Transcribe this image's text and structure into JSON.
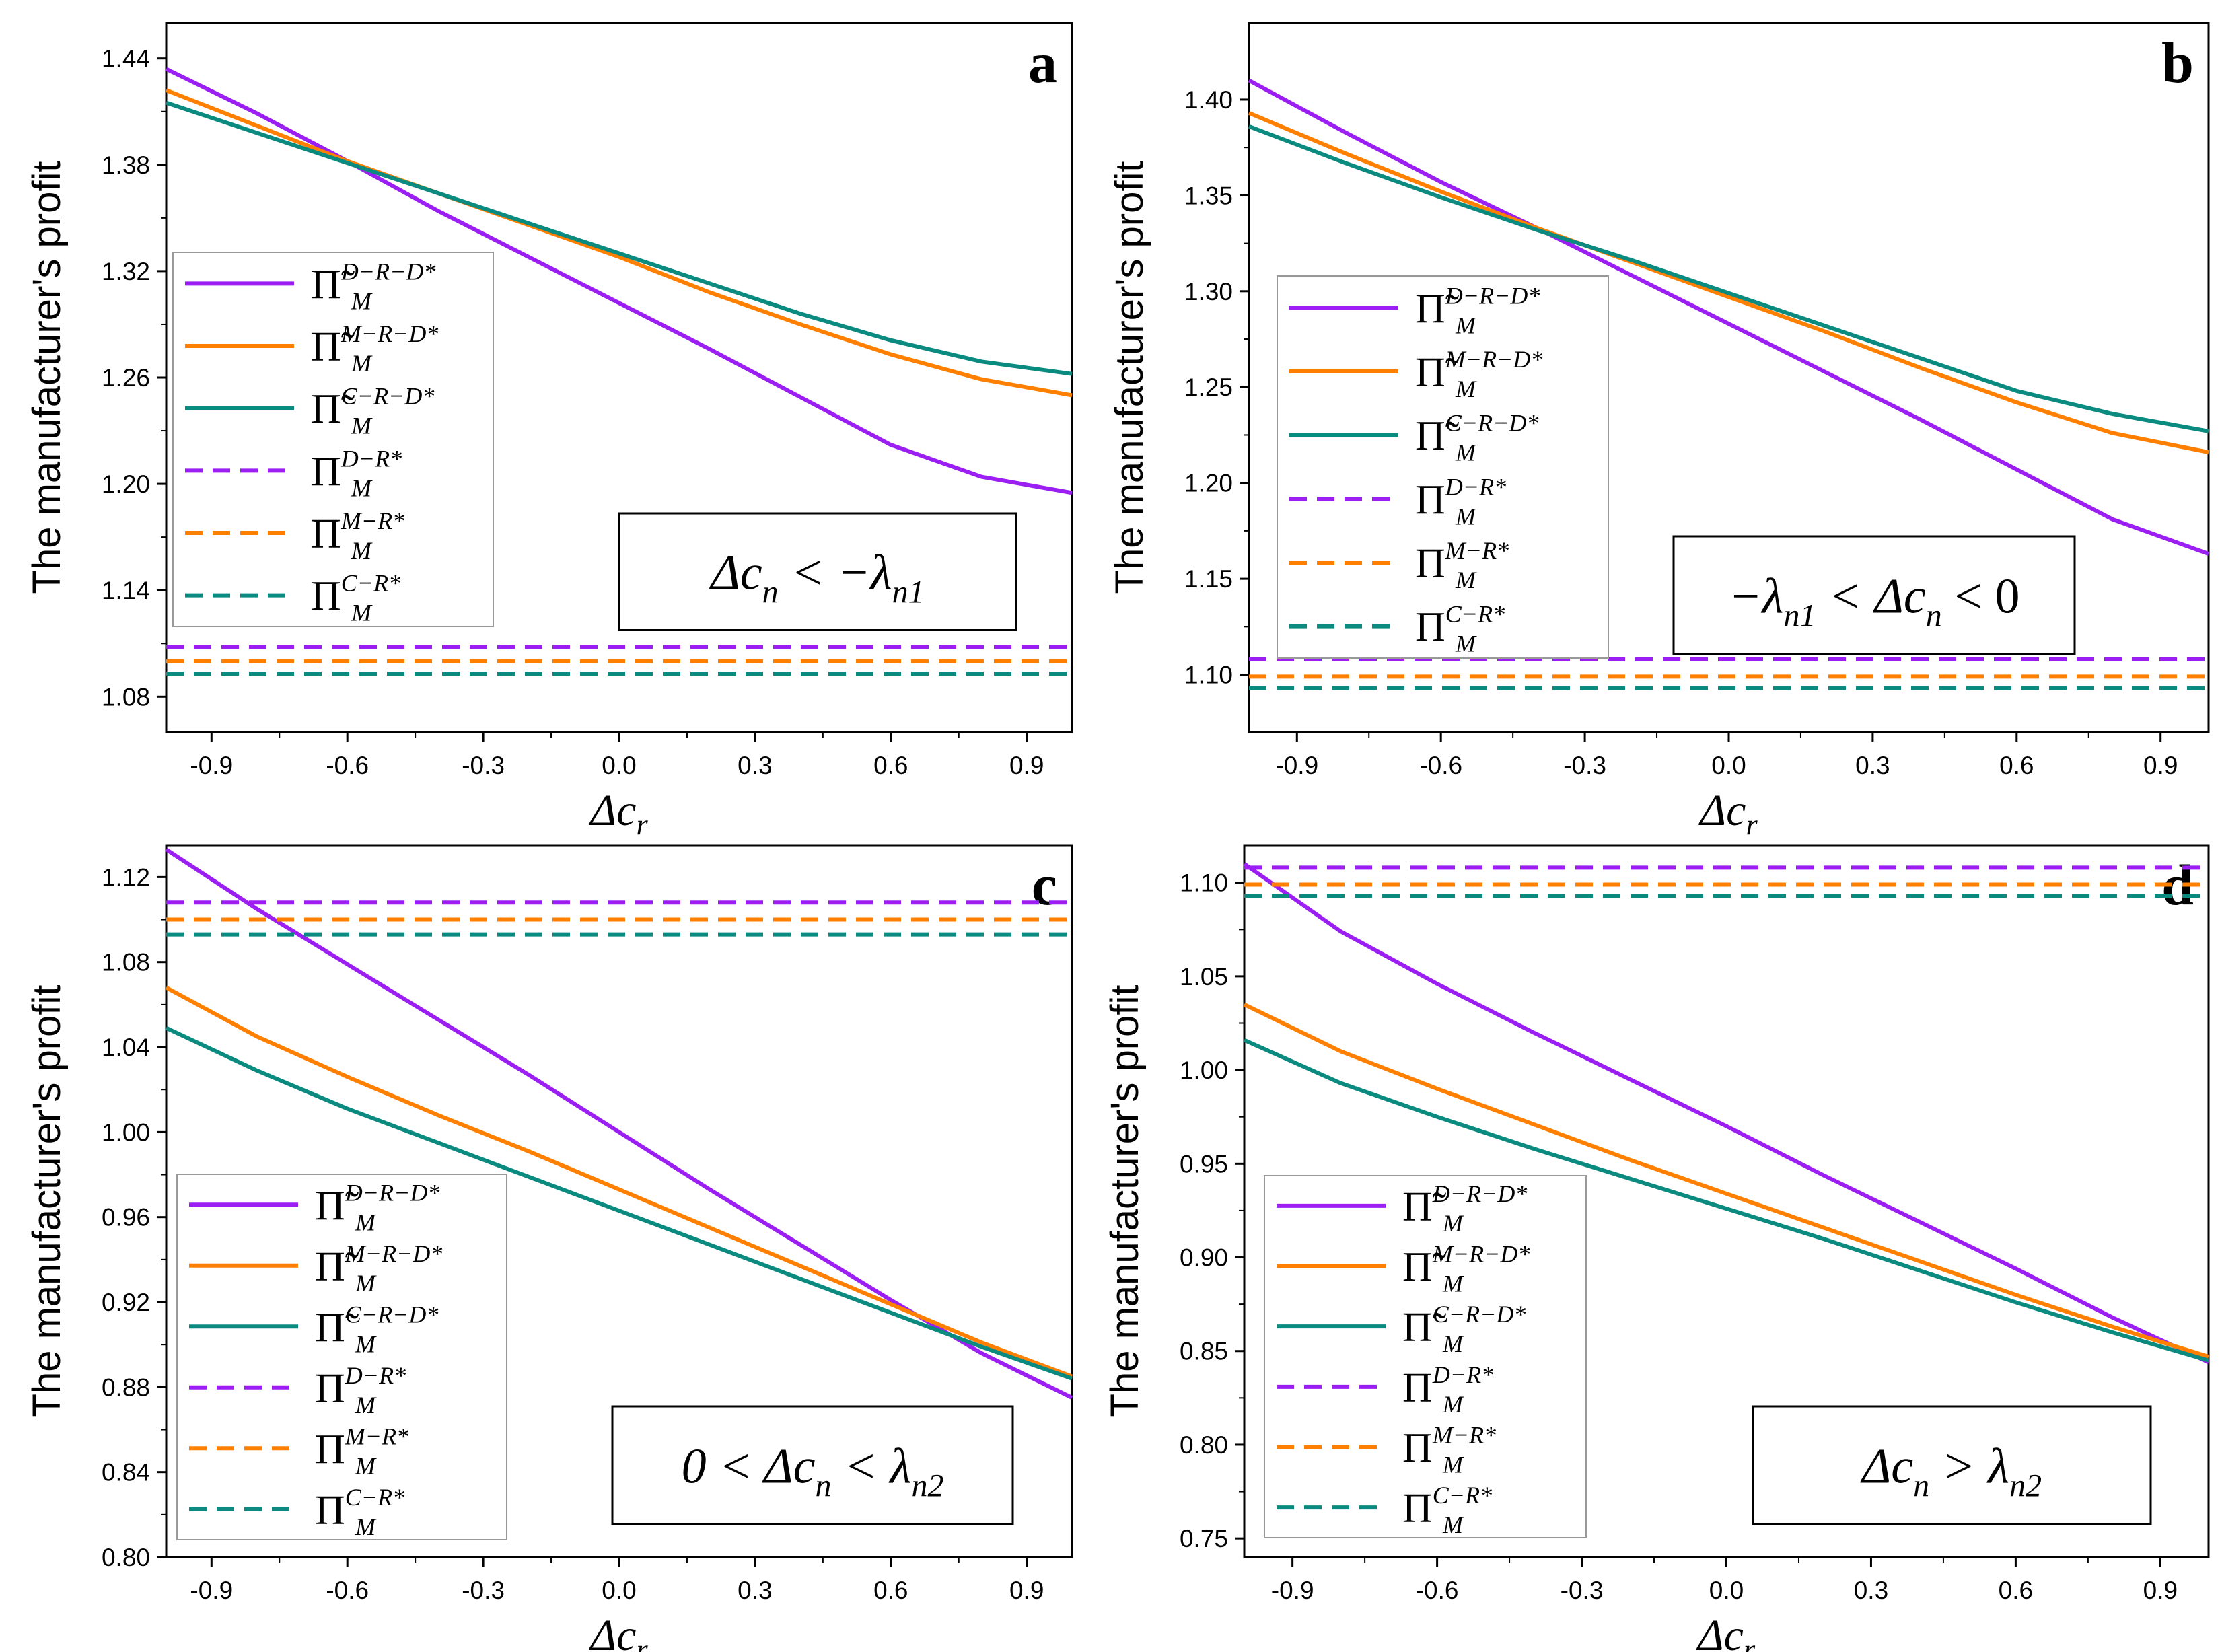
{
  "colors": {
    "purple": "#9b1ff2",
    "orange": "#ff7f00",
    "teal": "#0b8a80"
  },
  "legend_entries": [
    {
      "key": "DRD",
      "base": "Π̃",
      "sup": "D−R−D*",
      "sub": "M",
      "color": "#9b1ff2",
      "dash": false
    },
    {
      "key": "MRD",
      "base": "Π̃",
      "sup": "M−R−D*",
      "sub": "M",
      "color": "#ff7f00",
      "dash": false
    },
    {
      "key": "CRD",
      "base": "Π̃",
      "sup": "C−R−D*",
      "sub": "M",
      "color": "#0b8a80",
      "dash": false
    },
    {
      "key": "DR",
      "base": "Π",
      "sup": "D−R*",
      "sub": "M",
      "color": "#9b1ff2",
      "dash": true
    },
    {
      "key": "MR",
      "base": "Π",
      "sup": "M−R*",
      "sub": "M",
      "color": "#ff7f00",
      "dash": true
    },
    {
      "key": "CR",
      "base": "Π",
      "sup": "C−R*",
      "sub": "M",
      "color": "#0b8a80",
      "dash": true
    }
  ],
  "chart_data": [
    {
      "type": "line",
      "panel_label": "a",
      "ylabel": "The manufacturer's profit",
      "xlabel": {
        "main": "Δc",
        "sub": "r"
      },
      "xlim": [
        -1.0,
        1.0
      ],
      "ylim": [
        1.06,
        1.46
      ],
      "xticks": [
        -0.9,
        -0.6,
        -0.3,
        0.0,
        0.3,
        0.6,
        0.9
      ],
      "xtick_labels": [
        "-0.9",
        "-0.6",
        "-0.3",
        "0.0",
        "0.3",
        "0.6",
        "0.9"
      ],
      "yticks": [
        1.08,
        1.14,
        1.2,
        1.26,
        1.32,
        1.38,
        1.44
      ],
      "ytick_labels": [
        "1.08",
        "1.14",
        "1.20",
        "1.26",
        "1.32",
        "1.38",
        "1.44"
      ],
      "condition": [
        "Δc",
        "n",
        " < −λ",
        "n1",
        ""
      ],
      "series": [
        {
          "key": "DRD",
          "x": [
            -1.0,
            -0.8,
            -0.6,
            -0.4,
            -0.2,
            0.0,
            0.2,
            0.4,
            0.6,
            0.8,
            1.0
          ],
          "values": [
            1.434,
            1.409,
            1.382,
            1.354,
            1.328,
            1.302,
            1.276,
            1.249,
            1.222,
            1.204,
            1.195
          ]
        },
        {
          "key": "MRD",
          "x": [
            -1.0,
            -0.8,
            -0.6,
            -0.4,
            -0.2,
            0.0,
            0.2,
            0.4,
            0.6,
            0.8,
            1.0
          ],
          "values": [
            1.422,
            1.402,
            1.382,
            1.364,
            1.346,
            1.328,
            1.308,
            1.29,
            1.273,
            1.259,
            1.25
          ]
        },
        {
          "key": "CRD",
          "x": [
            -1.0,
            -0.8,
            -0.6,
            -0.4,
            -0.2,
            0.0,
            0.2,
            0.4,
            0.6,
            0.8,
            1.0
          ],
          "values": [
            1.415,
            1.398,
            1.381,
            1.364,
            1.347,
            1.33,
            1.313,
            1.296,
            1.281,
            1.269,
            1.262
          ]
        },
        {
          "key": "DR",
          "x": [
            -1.0,
            1.0
          ],
          "values": [
            1.108,
            1.108
          ]
        },
        {
          "key": "MR",
          "x": [
            -1.0,
            1.0
          ],
          "values": [
            1.1,
            1.1
          ]
        },
        {
          "key": "CR",
          "x": [
            -1.0,
            1.0
          ],
          "values": [
            1.093,
            1.093
          ]
        }
      ]
    },
    {
      "type": "line",
      "panel_label": "b",
      "ylabel": "The manufacturer's profit",
      "xlabel": {
        "main": "Δc",
        "sub": "r"
      },
      "xlim": [
        -1.0,
        1.0
      ],
      "ylim": [
        1.07,
        1.44
      ],
      "xticks": [
        -0.9,
        -0.6,
        -0.3,
        0.0,
        0.3,
        0.6,
        0.9
      ],
      "xtick_labels": [
        "-0.9",
        "-0.6",
        "-0.3",
        "0.0",
        "0.3",
        "0.6",
        "0.9"
      ],
      "yticks": [
        1.1,
        1.15,
        1.2,
        1.25,
        1.3,
        1.35,
        1.4
      ],
      "ytick_labels": [
        "1.10",
        "1.15",
        "1.20",
        "1.25",
        "1.30",
        "1.35",
        "1.40"
      ],
      "condition": [
        "−λ",
        "n1",
        " < Δc",
        "n",
        " < 0"
      ],
      "series": [
        {
          "key": "DRD",
          "x": [
            -1.0,
            -0.8,
            -0.6,
            -0.4,
            -0.2,
            0.0,
            0.2,
            0.4,
            0.6,
            0.8,
            1.0
          ],
          "values": [
            1.41,
            1.383,
            1.357,
            1.333,
            1.308,
            1.283,
            1.258,
            1.233,
            1.207,
            1.181,
            1.163
          ]
        },
        {
          "key": "MRD",
          "x": [
            -1.0,
            -0.8,
            -0.6,
            -0.4,
            -0.2,
            0.0,
            0.2,
            0.4,
            0.6,
            0.8,
            1.0
          ],
          "values": [
            1.393,
            1.372,
            1.352,
            1.333,
            1.315,
            1.297,
            1.279,
            1.26,
            1.242,
            1.226,
            1.216
          ]
        },
        {
          "key": "CRD",
          "x": [
            -1.0,
            -0.8,
            -0.6,
            -0.4,
            -0.2,
            0.0,
            0.2,
            0.4,
            0.6,
            0.8,
            1.0
          ],
          "values": [
            1.386,
            1.367,
            1.349,
            1.332,
            1.316,
            1.299,
            1.282,
            1.265,
            1.248,
            1.236,
            1.227
          ]
        },
        {
          "key": "DR",
          "x": [
            -1.0,
            1.0
          ],
          "values": [
            1.108,
            1.108
          ]
        },
        {
          "key": "MR",
          "x": [
            -1.0,
            1.0
          ],
          "values": [
            1.099,
            1.099
          ]
        },
        {
          "key": "CR",
          "x": [
            -1.0,
            1.0
          ],
          "values": [
            1.093,
            1.093
          ]
        }
      ]
    },
    {
      "type": "line",
      "panel_label": "c",
      "ylabel": "The manufacturer's profit",
      "xlabel": {
        "main": "Δc",
        "sub": "r"
      },
      "xlim": [
        -1.0,
        1.0
      ],
      "ylim": [
        0.8,
        1.135
      ],
      "xticks": [
        -0.9,
        -0.6,
        -0.3,
        0.0,
        0.3,
        0.6,
        0.9
      ],
      "xtick_labels": [
        "-0.9",
        "-0.6",
        "-0.3",
        "0.0",
        "0.3",
        "0.6",
        "0.9"
      ],
      "yticks": [
        0.8,
        0.84,
        0.88,
        0.92,
        0.96,
        1.0,
        1.04,
        1.08,
        1.12
      ],
      "ytick_labels": [
        "0.80",
        "0.84",
        "0.88",
        "0.92",
        "0.96",
        "1.00",
        "1.04",
        "1.08",
        "1.12"
      ],
      "condition": [
        "0 < Δc",
        "n",
        " < λ",
        "n2",
        ""
      ],
      "series": [
        {
          "key": "DRD",
          "x": [
            -1.0,
            -0.8,
            -0.6,
            -0.4,
            -0.2,
            0.0,
            0.2,
            0.4,
            0.6,
            0.8,
            1.0
          ],
          "values": [
            1.133,
            1.105,
            1.079,
            1.053,
            1.027,
            1.0,
            0.973,
            0.947,
            0.921,
            0.896,
            0.875
          ]
        },
        {
          "key": "MRD",
          "x": [
            -1.0,
            -0.8,
            -0.6,
            -0.4,
            -0.2,
            0.0,
            0.2,
            0.4,
            0.6,
            0.8,
            1.0
          ],
          "values": [
            1.068,
            1.045,
            1.026,
            1.008,
            0.991,
            0.973,
            0.955,
            0.937,
            0.919,
            0.901,
            0.885
          ]
        },
        {
          "key": "CRD",
          "x": [
            -1.0,
            -0.8,
            -0.6,
            -0.4,
            -0.2,
            0.0,
            0.2,
            0.4,
            0.6,
            0.8,
            1.0
          ],
          "values": [
            1.049,
            1.029,
            1.011,
            0.995,
            0.979,
            0.963,
            0.947,
            0.931,
            0.915,
            0.899,
            0.884
          ]
        },
        {
          "key": "DR",
          "x": [
            -1.0,
            1.0
          ],
          "values": [
            1.108,
            1.108
          ]
        },
        {
          "key": "MR",
          "x": [
            -1.0,
            1.0
          ],
          "values": [
            1.1,
            1.1
          ]
        },
        {
          "key": "CR",
          "x": [
            -1.0,
            1.0
          ],
          "values": [
            1.093,
            1.093
          ]
        }
      ]
    },
    {
      "type": "line",
      "panel_label": "d",
      "ylabel": "The manufacturer's profit",
      "xlabel": {
        "main": "Δc",
        "sub": "r"
      },
      "xlim": [
        -1.0,
        1.0
      ],
      "ylim": [
        0.74,
        1.12
      ],
      "xticks": [
        -0.9,
        -0.6,
        -0.3,
        0.0,
        0.3,
        0.6,
        0.9
      ],
      "xtick_labels": [
        "-0.9",
        "-0.6",
        "-0.3",
        "0.0",
        "0.3",
        "0.6",
        "0.9"
      ],
      "yticks": [
        0.75,
        0.8,
        0.85,
        0.9,
        0.95,
        1.0,
        1.05,
        1.1
      ],
      "ytick_labels": [
        "0.75",
        "0.80",
        "0.85",
        "0.90",
        "0.95",
        "1.00",
        "1.05",
        "1.10"
      ],
      "condition": [
        "Δc",
        "n",
        " > λ",
        "n2",
        ""
      ],
      "series": [
        {
          "key": "DRD",
          "x": [
            -1.0,
            -0.8,
            -0.6,
            -0.4,
            -0.2,
            0.0,
            0.2,
            0.4,
            0.6,
            0.8,
            1.0
          ],
          "values": [
            1.11,
            1.074,
            1.046,
            1.02,
            0.995,
            0.97,
            0.944,
            0.919,
            0.894,
            0.868,
            0.844
          ]
        },
        {
          "key": "MRD",
          "x": [
            -1.0,
            -0.8,
            -0.6,
            -0.4,
            -0.2,
            0.0,
            0.2,
            0.4,
            0.6,
            0.8,
            1.0
          ],
          "values": [
            1.035,
            1.01,
            0.99,
            0.971,
            0.952,
            0.934,
            0.916,
            0.898,
            0.88,
            0.863,
            0.847
          ]
        },
        {
          "key": "CRD",
          "x": [
            -1.0,
            -0.8,
            -0.6,
            -0.4,
            -0.2,
            0.0,
            0.2,
            0.4,
            0.6,
            0.8,
            1.0
          ],
          "values": [
            1.016,
            0.993,
            0.975,
            0.958,
            0.942,
            0.926,
            0.91,
            0.893,
            0.876,
            0.86,
            0.845
          ]
        },
        {
          "key": "DR",
          "x": [
            -1.0,
            1.0
          ],
          "values": [
            1.108,
            1.108
          ]
        },
        {
          "key": "MR",
          "x": [
            -1.0,
            1.0
          ],
          "values": [
            1.099,
            1.099
          ]
        },
        {
          "key": "CR",
          "x": [
            -1.0,
            1.0
          ],
          "values": [
            1.093,
            1.093
          ]
        }
      ]
    }
  ]
}
